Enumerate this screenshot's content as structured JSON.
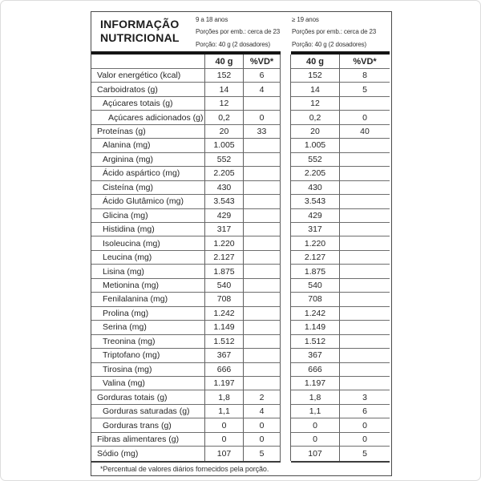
{
  "header": {
    "title_lines": [
      "INFORMAÇÃO",
      "NUTRICIONAL"
    ],
    "groups": [
      {
        "age": "9 a 18 anos",
        "servings": "Porções por emb.: cerca de 23",
        "portion": "Porção: 40 g (2 dosadores)"
      },
      {
        "age": "≥ 19 anos",
        "servings": "Porções por emb.: cerca de 23",
        "portion": "Porção: 40 g (2 dosadores)"
      }
    ]
  },
  "columns": {
    "amount": "40 g",
    "dv": "%VD*"
  },
  "rows": [
    {
      "label": "Valor energético (kcal)",
      "indent": 0,
      "g1": "152",
      "vd1": "6",
      "g2": "152",
      "vd2": "8"
    },
    {
      "label": "Carboidratos (g)",
      "indent": 0,
      "g1": "14",
      "vd1": "4",
      "g2": "14",
      "vd2": "5"
    },
    {
      "label": "Açúcares totais (g)",
      "indent": 1,
      "g1": "12",
      "vd1": "",
      "g2": "12",
      "vd2": ""
    },
    {
      "label": "Açúcares adicionados (g)",
      "indent": 2,
      "g1": "0,2",
      "vd1": "0",
      "g2": "0,2",
      "vd2": "0"
    },
    {
      "label": "Proteínas (g)",
      "indent": 0,
      "g1": "20",
      "vd1": "33",
      "g2": "20",
      "vd2": "40"
    },
    {
      "label": "Alanina (mg)",
      "indent": 1,
      "g1": "1.005",
      "vd1": "",
      "g2": "1.005",
      "vd2": ""
    },
    {
      "label": "Arginina (mg)",
      "indent": 1,
      "g1": "552",
      "vd1": "",
      "g2": "552",
      "vd2": ""
    },
    {
      "label": "Ácido aspártico (mg)",
      "indent": 1,
      "g1": "2.205",
      "vd1": "",
      "g2": "2.205",
      "vd2": ""
    },
    {
      "label": "Cisteína (mg)",
      "indent": 1,
      "g1": "430",
      "vd1": "",
      "g2": "430",
      "vd2": ""
    },
    {
      "label": "Ácido Glutâmico (mg)",
      "indent": 1,
      "g1": "3.543",
      "vd1": "",
      "g2": "3.543",
      "vd2": ""
    },
    {
      "label": "Glicina (mg)",
      "indent": 1,
      "g1": "429",
      "vd1": "",
      "g2": "429",
      "vd2": ""
    },
    {
      "label": "Histidina (mg)",
      "indent": 1,
      "g1": "317",
      "vd1": "",
      "g2": "317",
      "vd2": ""
    },
    {
      "label": "Isoleucina (mg)",
      "indent": 1,
      "g1": "1.220",
      "vd1": "",
      "g2": "1.220",
      "vd2": ""
    },
    {
      "label": "Leucina (mg)",
      "indent": 1,
      "g1": "2.127",
      "vd1": "",
      "g2": "2.127",
      "vd2": ""
    },
    {
      "label": "Lisina (mg)",
      "indent": 1,
      "g1": "1.875",
      "vd1": "",
      "g2": "1.875",
      "vd2": ""
    },
    {
      "label": "Metionina (mg)",
      "indent": 1,
      "g1": "540",
      "vd1": "",
      "g2": "540",
      "vd2": ""
    },
    {
      "label": "Fenilalanina (mg)",
      "indent": 1,
      "g1": "708",
      "vd1": "",
      "g2": "708",
      "vd2": ""
    },
    {
      "label": "Prolina (mg)",
      "indent": 1,
      "g1": "1.242",
      "vd1": "",
      "g2": "1.242",
      "vd2": ""
    },
    {
      "label": "Serina (mg)",
      "indent": 1,
      "g1": "1.149",
      "vd1": "",
      "g2": "1.149",
      "vd2": ""
    },
    {
      "label": "Treonina (mg)",
      "indent": 1,
      "g1": "1.512",
      "vd1": "",
      "g2": "1.512",
      "vd2": ""
    },
    {
      "label": "Triptofano (mg)",
      "indent": 1,
      "g1": "367",
      "vd1": "",
      "g2": "367",
      "vd2": ""
    },
    {
      "label": "Tirosina (mg)",
      "indent": 1,
      "g1": "666",
      "vd1": "",
      "g2": "666",
      "vd2": ""
    },
    {
      "label": "Valina (mg)",
      "indent": 1,
      "g1": "1.197",
      "vd1": "",
      "g2": "1.197",
      "vd2": ""
    },
    {
      "label": "Gorduras totais (g)",
      "indent": 0,
      "g1": "1,8",
      "vd1": "2",
      "g2": "1,8",
      "vd2": "3"
    },
    {
      "label": "Gorduras saturadas (g)",
      "indent": 1,
      "g1": "1,1",
      "vd1": "4",
      "g2": "1,1",
      "vd2": "6"
    },
    {
      "label": "Gorduras trans (g)",
      "indent": 1,
      "g1": "0",
      "vd1": "0",
      "g2": "0",
      "vd2": "0"
    },
    {
      "label": "Fibras alimentares (g)",
      "indent": 0,
      "g1": "0",
      "vd1": "0",
      "g2": "0",
      "vd2": "0"
    },
    {
      "label": "Sódio (mg)",
      "indent": 0,
      "g1": "107",
      "vd1": "5",
      "g2": "107",
      "vd2": "5"
    }
  ],
  "footnote": "*Percentual de valores diários fornecidos pela porção.",
  "colors": {
    "bar": "#141414",
    "thin_rule": "#6e6e6e",
    "box_border": "#4a4a4a"
  }
}
